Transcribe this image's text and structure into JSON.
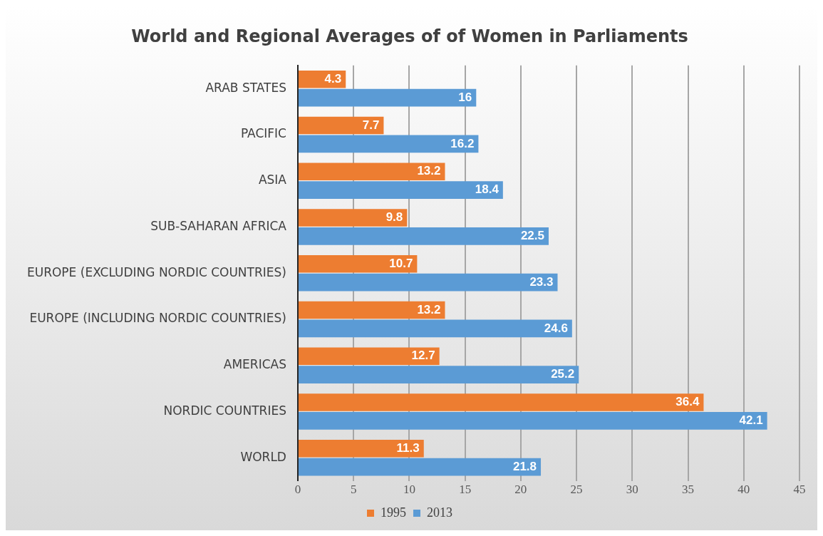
{
  "chart_data": {
    "type": "bar",
    "orientation": "horizontal",
    "title": "World and Regional Averages of of Women in Parliaments",
    "categories": [
      "ARAB STATES",
      "PACIFIC",
      "ASIA",
      "SUB-SAHARAN AFRICA",
      "EUROPE (EXCLUDING NORDIC COUNTRIES)",
      "EUROPE (INCLUDING NORDIC COUNTRIES)",
      "AMERICAS",
      "NORDIC COUNTRIES",
      "WORLD"
    ],
    "series": [
      {
        "name": "1995",
        "color": "#ed7d31",
        "values": [
          4.3,
          7.7,
          13.2,
          9.8,
          10.7,
          13.2,
          12.7,
          36.4,
          11.3
        ]
      },
      {
        "name": "2013",
        "color": "#5b9bd5",
        "values": [
          16,
          16.2,
          18.4,
          22.5,
          23.3,
          24.6,
          25.2,
          42.1,
          21.8
        ]
      }
    ],
    "xlim": [
      0,
      45
    ],
    "xticks": [
      0,
      5,
      10,
      15,
      20,
      25,
      30,
      35,
      40,
      45
    ],
    "grid": "x",
    "legend": "bottom",
    "data_labels": true
  }
}
